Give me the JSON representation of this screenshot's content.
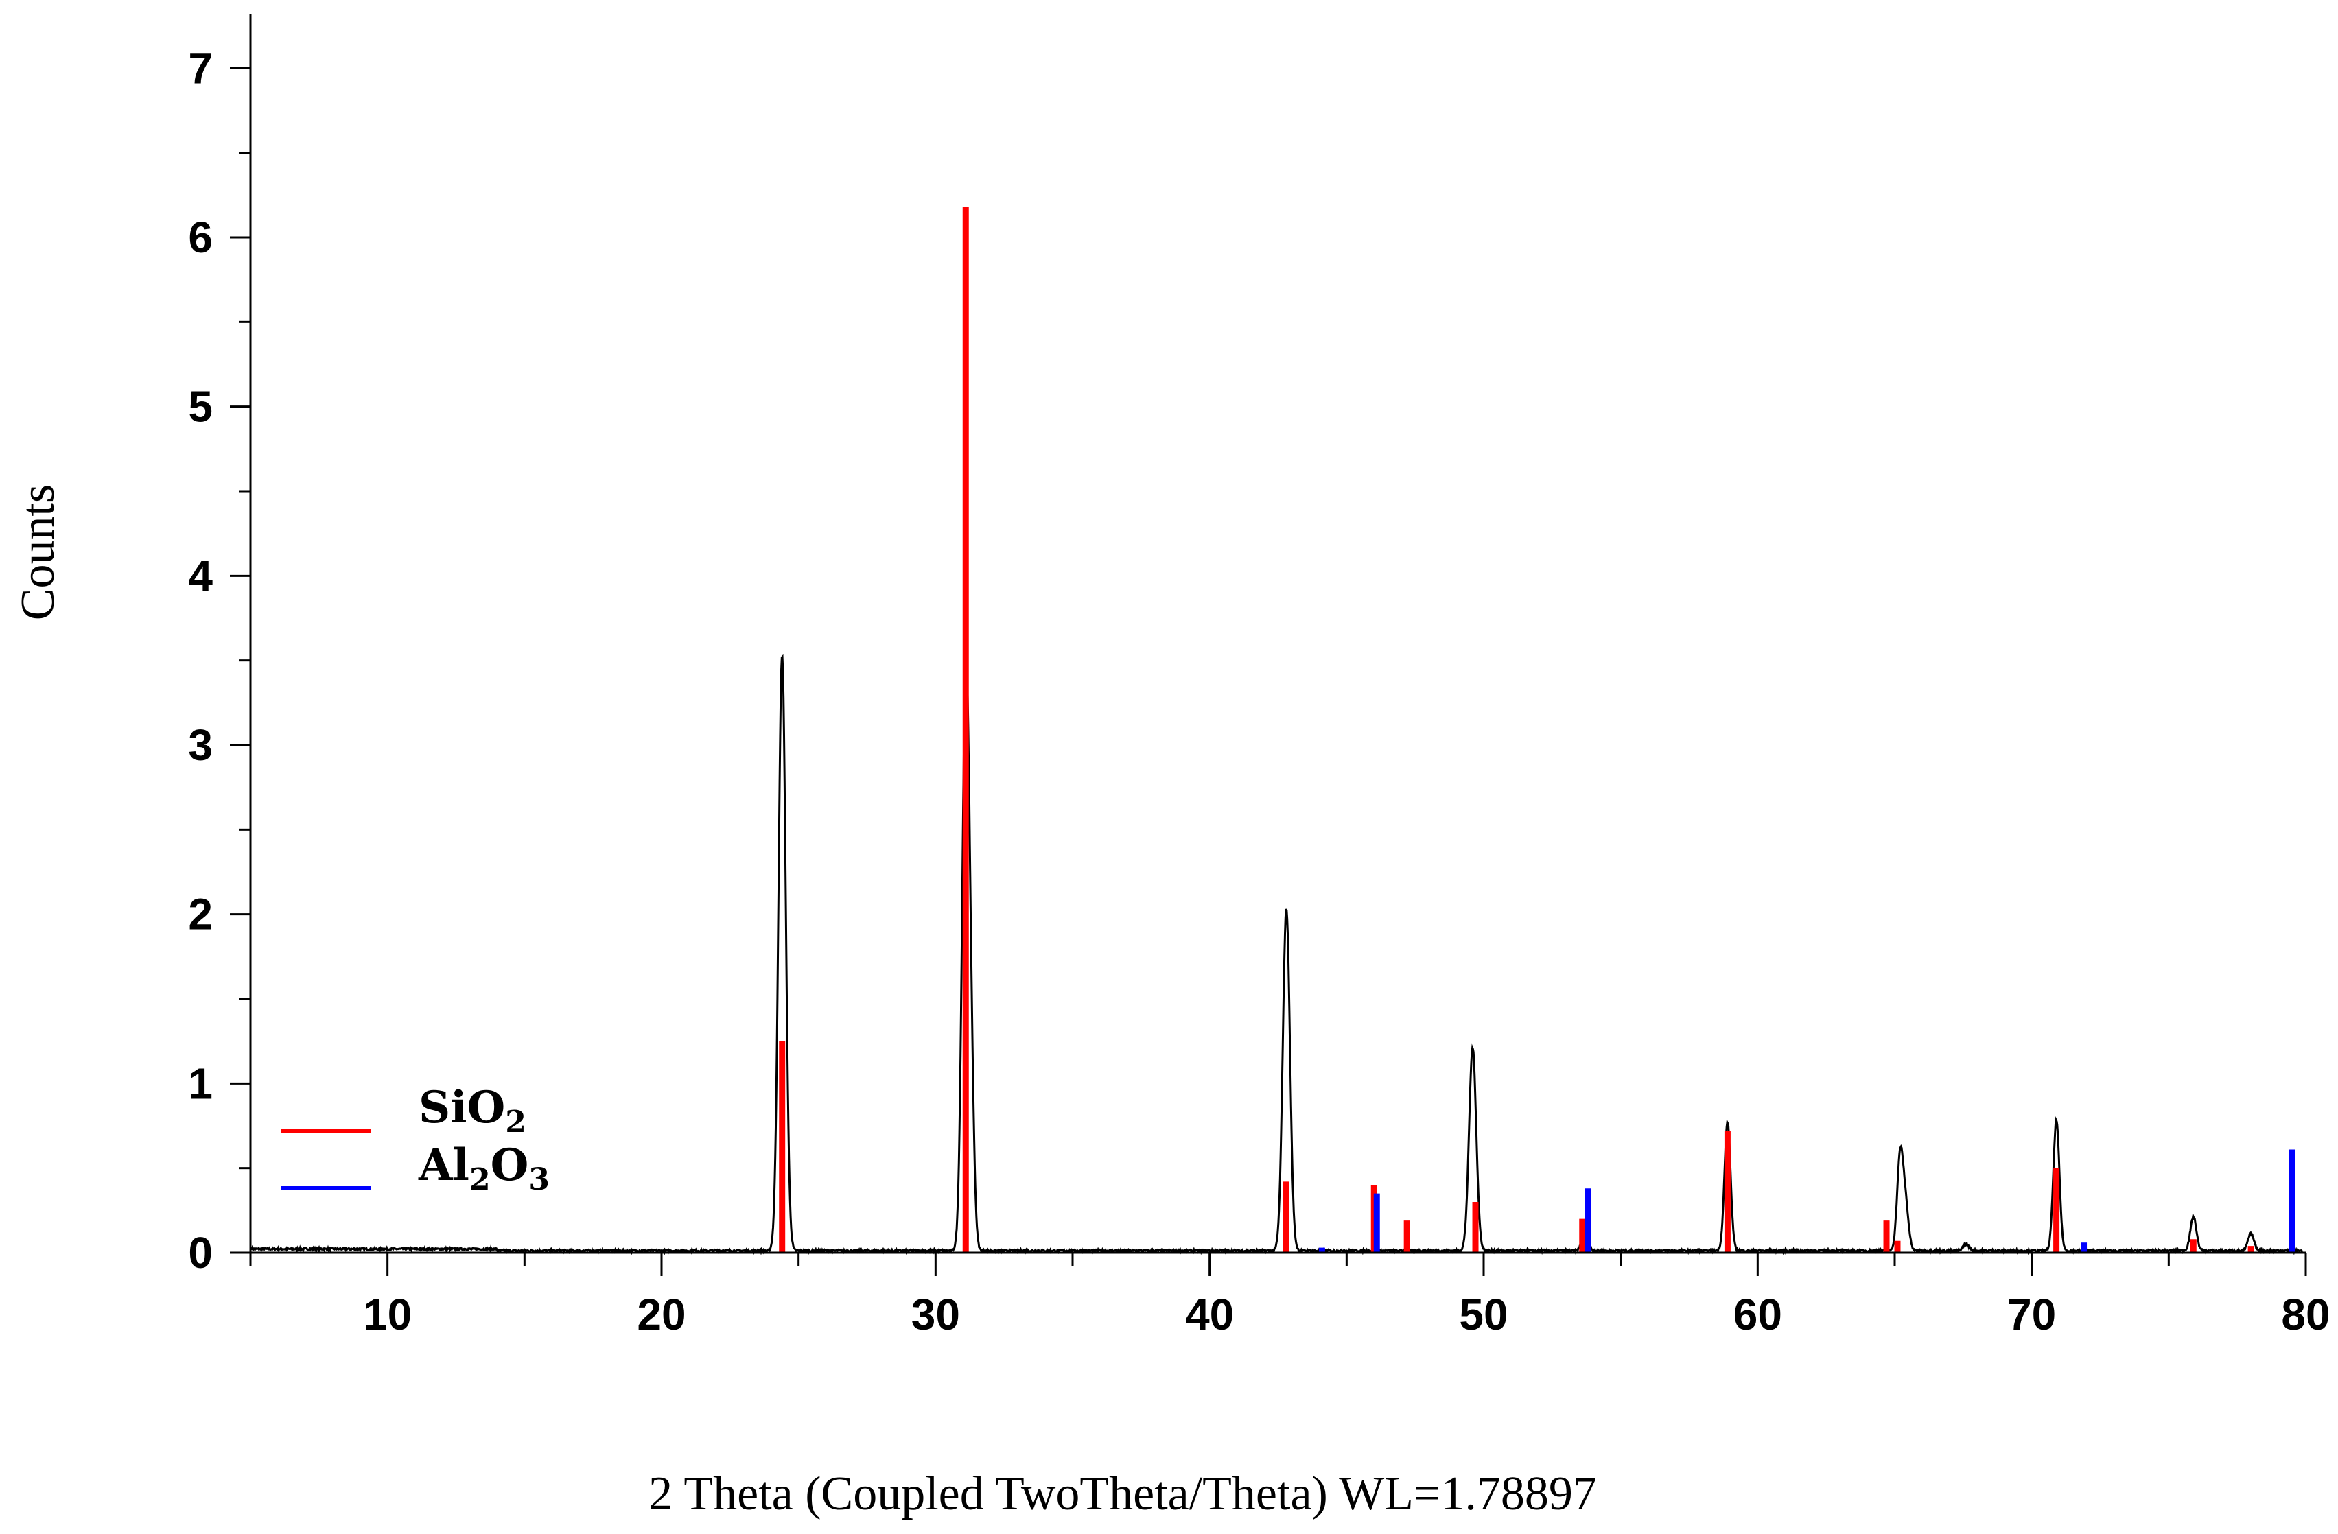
{
  "chart_data": {
    "type": "line",
    "xlabel": "2 Theta (Coupled TwoTheta/Theta) WL=1.78897",
    "ylabel": "Counts",
    "xlim": [
      5,
      80
    ],
    "ylim": [
      0,
      7.2
    ],
    "x_ticks": [
      10,
      20,
      30,
      40,
      50,
      60,
      70,
      80
    ],
    "y_ticks": [
      0,
      1,
      2,
      3,
      4,
      5,
      6,
      7
    ],
    "grid": false,
    "legend_position": "bottom-left",
    "legend": [
      {
        "label": "SiO",
        "sub": "2",
        "color": "#ff0000"
      },
      {
        "label": "Al",
        "sub": "2",
        "label2": "O",
        "sub2": "3",
        "color": "#0000ff"
      }
    ],
    "series": [
      {
        "role": "measured pattern",
        "color": "#000000",
        "peaks": [
          {
            "x": 24.4,
            "y": 3.52
          },
          {
            "x": 31.1,
            "y": 3.35
          },
          {
            "x": 31.3,
            "y": 0.75
          },
          {
            "x": 42.8,
            "y": 2.02
          },
          {
            "x": 49.6,
            "y": 1.2
          },
          {
            "x": 53.7,
            "y": 0.12
          },
          {
            "x": 58.9,
            "y": 0.76
          },
          {
            "x": 65.2,
            "y": 0.56
          },
          {
            "x": 65.4,
            "y": 0.25
          },
          {
            "x": 67.6,
            "y": 0.04
          },
          {
            "x": 70.9,
            "y": 0.77
          },
          {
            "x": 75.9,
            "y": 0.2
          },
          {
            "x": 78.0,
            "y": 0.1
          }
        ]
      },
      {
        "name": "SiO2",
        "color": "#ff0000",
        "sticks": [
          {
            "x": 24.4,
            "y": 1.25
          },
          {
            "x": 31.1,
            "y": 6.18
          },
          {
            "x": 42.8,
            "y": 0.42
          },
          {
            "x": 46.0,
            "y": 0.4
          },
          {
            "x": 47.2,
            "y": 0.19
          },
          {
            "x": 49.7,
            "y": 0.3
          },
          {
            "x": 53.6,
            "y": 0.2
          },
          {
            "x": 58.9,
            "y": 0.72
          },
          {
            "x": 64.7,
            "y": 0.19
          },
          {
            "x": 65.1,
            "y": 0.07
          },
          {
            "x": 70.9,
            "y": 0.5
          },
          {
            "x": 75.9,
            "y": 0.08
          },
          {
            "x": 78.0,
            "y": 0.04
          }
        ]
      },
      {
        "name": "Al2O3",
        "color": "#0000ff",
        "sticks": [
          {
            "x": 44.1,
            "y": 0.03
          },
          {
            "x": 46.1,
            "y": 0.35
          },
          {
            "x": 53.8,
            "y": 0.38
          },
          {
            "x": 71.9,
            "y": 0.06
          },
          {
            "x": 79.5,
            "y": 0.61
          }
        ]
      }
    ]
  }
}
